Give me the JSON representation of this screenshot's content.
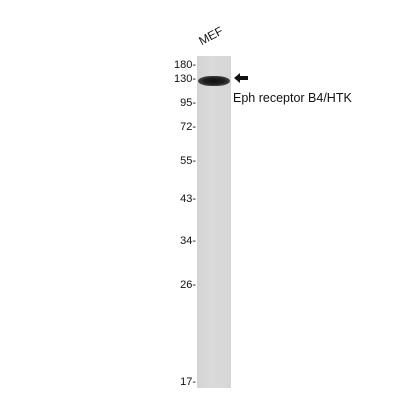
{
  "figure": {
    "sample_lane_label": "MEF",
    "band_label": "Eph receptor B4/HTK",
    "markers": [
      {
        "label": "180-"
      },
      {
        "label": "130-"
      },
      {
        "label": "95-"
      },
      {
        "label": "72-"
      },
      {
        "label": "55-"
      },
      {
        "label": "43-"
      },
      {
        "label": "34-"
      },
      {
        "label": "26-"
      },
      {
        "label": "17-"
      }
    ],
    "arrow_icon": "left-arrow-icon"
  }
}
